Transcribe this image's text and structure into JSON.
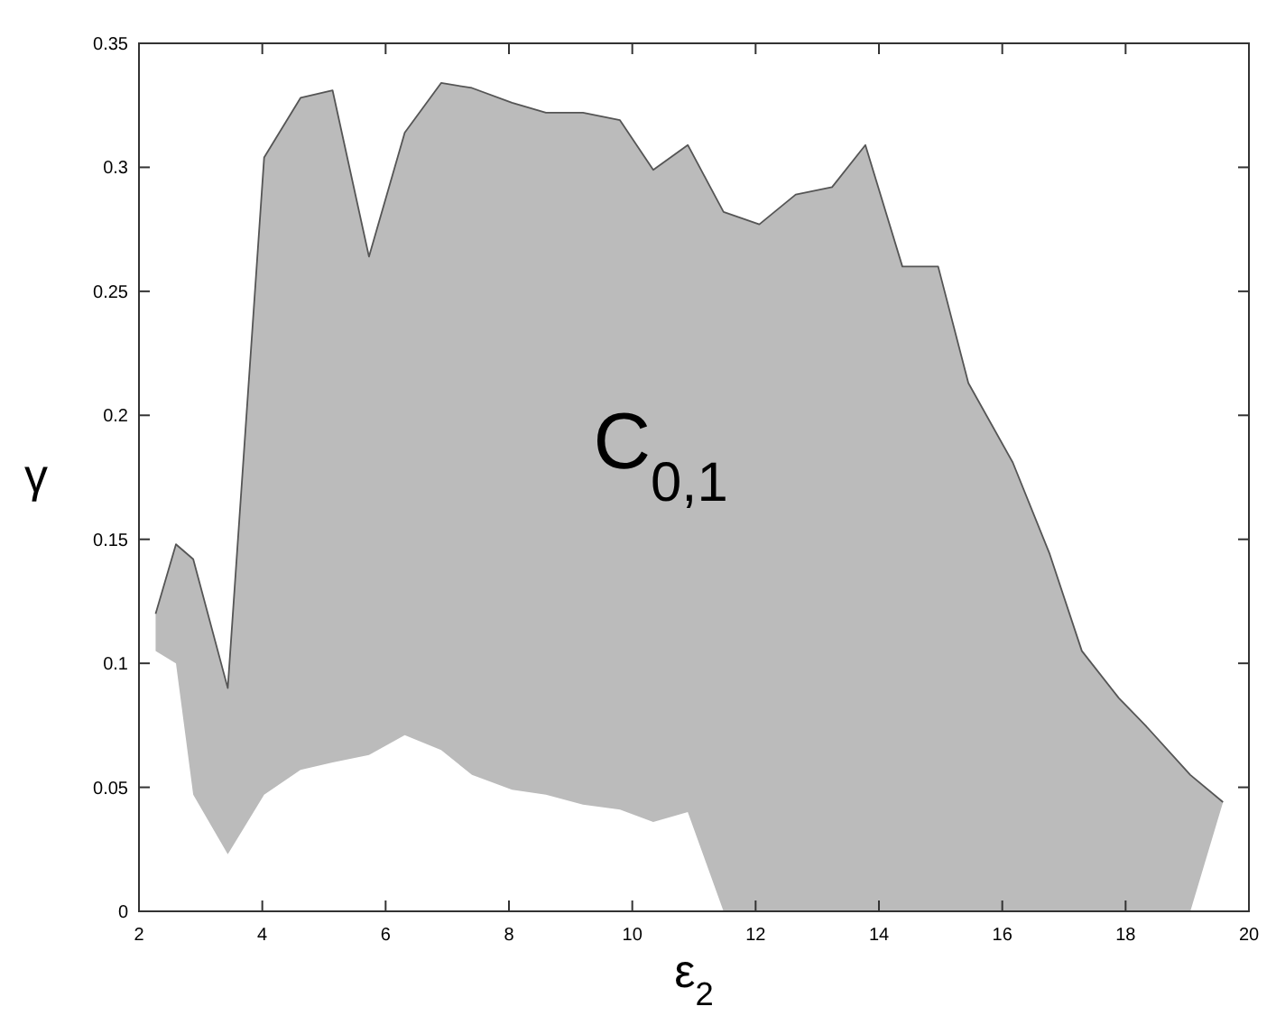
{
  "chart_data": {
    "type": "line",
    "xlabel": "ε$_{2}$",
    "ylabel": "γ",
    "xlim": [
      2,
      20
    ],
    "ylim": [
      0,
      0.35
    ],
    "xticks": [
      2,
      4,
      6,
      8,
      10,
      12,
      14,
      16,
      18,
      20
    ],
    "yticks": [
      0,
      0.05,
      0.1,
      0.15,
      0.2,
      0.25,
      0.3,
      0.35
    ],
    "grid": false,
    "annotations": [
      "C$_{0,1}$"
    ],
    "series": [
      {
        "color": "#555555",
        "x": [
          2.27,
          2.6,
          2.88,
          3.44,
          4.03,
          4.62,
          5.14,
          5.73,
          6.31,
          6.9,
          7.4,
          8.05,
          8.6,
          9.2,
          9.8,
          10.34,
          10.9,
          11.48,
          12.06,
          12.65,
          13.24,
          13.78,
          14.38,
          14.96,
          15.45,
          16.17,
          16.77,
          17.29,
          17.89,
          18.32,
          19.05,
          19.58
        ],
        "values": [
          0.12,
          0.148,
          0.142,
          0.09,
          0.304,
          0.328,
          0.331,
          0.264,
          0.314,
          0.334,
          0.332,
          0.326,
          0.322,
          0.322,
          0.319,
          0.299,
          0.309,
          0.282,
          0.277,
          0.289,
          0.292,
          0.309,
          0.26,
          0.26,
          0.213,
          0.181,
          0.144,
          0.105,
          0.086,
          0.075,
          0.055,
          0.044
        ],
        "upper": [
          0.12,
          0.148,
          0.142,
          0.09,
          0.304,
          0.328,
          0.331,
          0.264,
          0.314,
          0.334,
          0.332,
          0.326,
          0.322,
          0.322,
          0.319,
          0.299,
          0.309,
          0.282,
          0.277,
          0.289,
          0.292,
          0.309,
          0.26,
          0.26,
          0.213,
          0.181,
          0.144,
          0.105,
          0.086,
          0.075,
          0.055,
          0.044
        ],
        "lower": [
          0.105,
          0.1,
          0.047,
          0.023,
          0.047,
          0.057,
          0.06,
          0.063,
          0.071,
          0.065,
          0.055,
          0.049,
          0.047,
          0.043,
          0.041,
          0.036,
          0.04,
          0,
          0,
          0,
          0,
          0,
          0,
          0,
          0,
          0,
          0,
          0,
          0,
          0,
          0,
          0.044
        ]
      }
    ]
  }
}
